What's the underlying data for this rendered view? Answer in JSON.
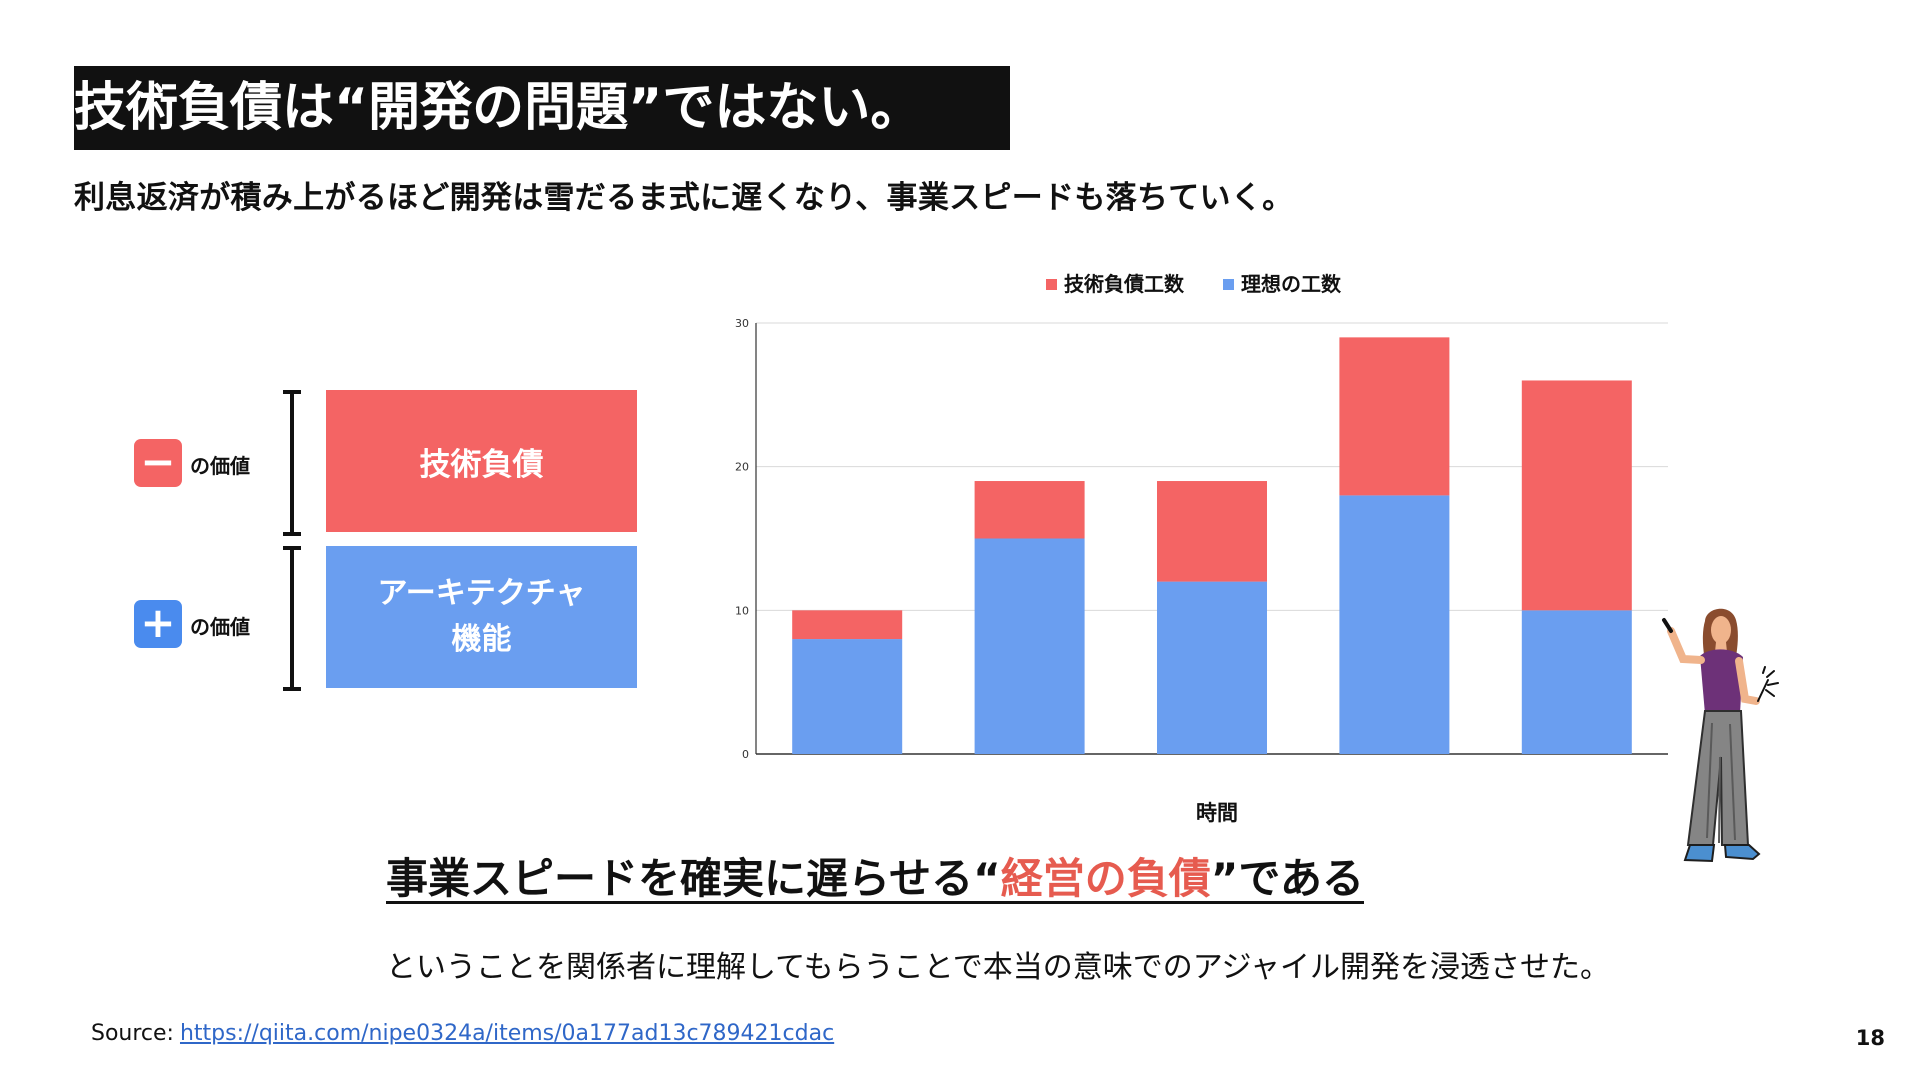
{
  "slide": {
    "title": "技術負債は“開発の問題”ではない。",
    "subtitle": "利息返済が積み上がるほど開発は雪だるま式に遅くなり、事業スピードも落ちていく。",
    "conclusion_prefix": "事業スピードを確実に遅らせる“",
    "conclusion_highlight": "経営の負債",
    "conclusion_suffix": "”である",
    "note": "ということを関係者に理解してもらうことで本当の意味でのアジャイル開発を浸透させた。",
    "source_label": "Source:",
    "source_link": "https://qiita.com/nipe0324a/items/0a177ad13c789421cdac",
    "page_number": "18"
  },
  "concept": {
    "minus_symbol": "−",
    "minus_label": "の価値",
    "plus_symbol": "+",
    "plus_label": "の価値",
    "debt_box": "技術負債",
    "feature_line1": "アーキテクチャ",
    "feature_line2": "機能"
  },
  "colors": {
    "debt": "#F46464",
    "ideal": "#6A9EF0",
    "plus_badge": "#4A8BEE",
    "highlight": "#E65B4F"
  },
  "chart_data": {
    "type": "bar",
    "stacked": true,
    "categories": [
      "",
      "",
      "",
      "",
      ""
    ],
    "series": [
      {
        "name": "理想の工数",
        "values": [
          8,
          15,
          12,
          18,
          10
        ],
        "color": "#6A9EF0"
      },
      {
        "name": "技術負債工数",
        "values": [
          2,
          4,
          7,
          11,
          16
        ],
        "color": "#F46464"
      }
    ],
    "xlabel": "時間",
    "ylabel": "",
    "ylim": [
      0,
      30
    ],
    "yticks": [
      0,
      10,
      20,
      30
    ],
    "legend": [
      "技術負債工数",
      "理想の工数"
    ],
    "legend_position": "top",
    "grid": true
  }
}
